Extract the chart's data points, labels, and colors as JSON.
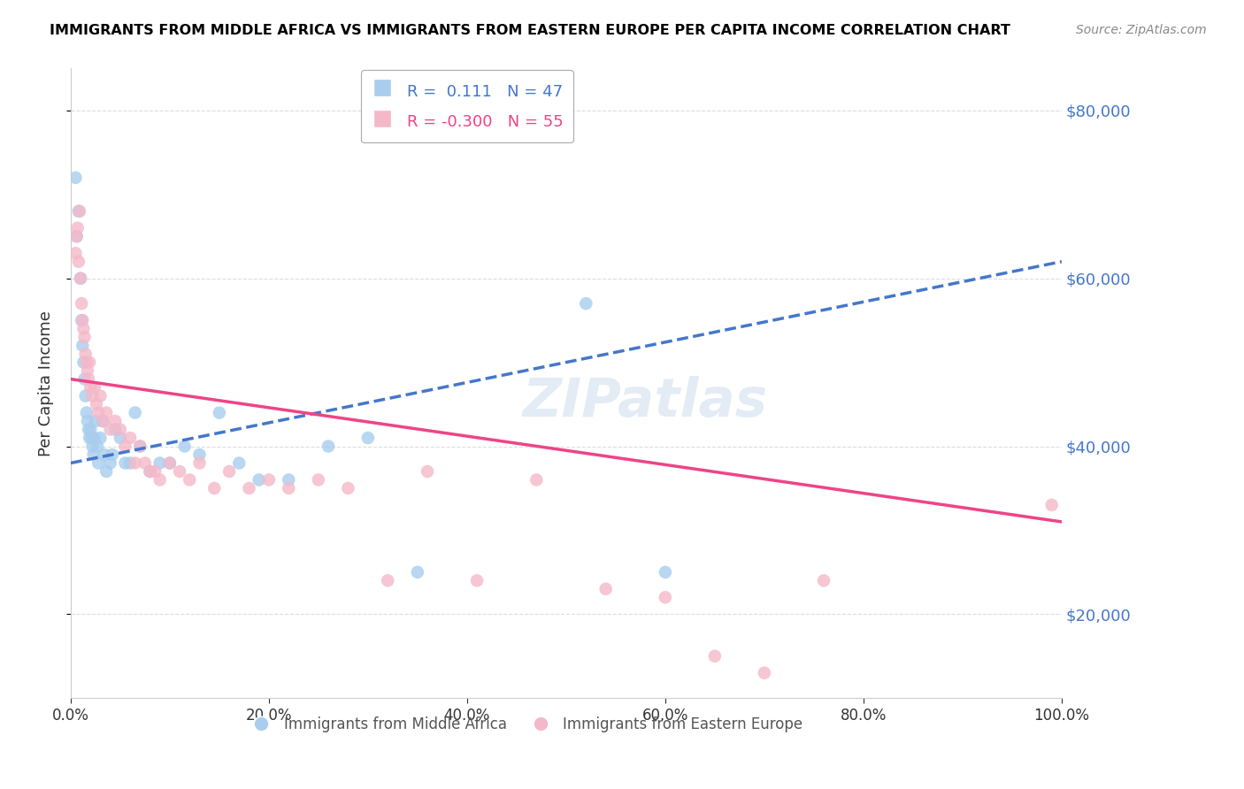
{
  "title": "IMMIGRANTS FROM MIDDLE AFRICA VS IMMIGRANTS FROM EASTERN EUROPE PER CAPITA INCOME CORRELATION CHART",
  "source": "Source: ZipAtlas.com",
  "ylabel": "Per Capita Income",
  "x_min": 0.0,
  "x_max": 1.0,
  "y_min": 10000,
  "y_max": 85000,
  "yticks": [
    20000,
    40000,
    60000,
    80000
  ],
  "ytick_labels": [
    "$20,000",
    "$40,000",
    "$60,000",
    "$80,000"
  ],
  "blue_R": 0.111,
  "blue_N": 47,
  "pink_R": -0.3,
  "pink_N": 55,
  "blue_color": "#A8CDED",
  "pink_color": "#F4B8C8",
  "blue_line_color": "#4477CC",
  "pink_line_color": "#EE4488",
  "legend_label_blue": "Immigrants from Middle Africa",
  "legend_label_pink": "Immigrants from Eastern Europe",
  "watermark": "ZIPatlas",
  "blue_trend_x0": 0.0,
  "blue_trend_x1": 1.0,
  "blue_trend_y0": 38000,
  "blue_trend_y1": 62000,
  "pink_trend_x0": 0.0,
  "pink_trend_x1": 1.0,
  "pink_trend_y0": 48000,
  "pink_trend_y1": 31000,
  "blue_scatter_x": [
    0.005,
    0.006,
    0.008,
    0.01,
    0.011,
    0.012,
    0.013,
    0.014,
    0.015,
    0.016,
    0.017,
    0.018,
    0.019,
    0.02,
    0.021,
    0.022,
    0.023,
    0.024,
    0.025,
    0.027,
    0.028,
    0.03,
    0.032,
    0.034,
    0.036,
    0.04,
    0.042,
    0.045,
    0.05,
    0.055,
    0.06,
    0.065,
    0.07,
    0.08,
    0.09,
    0.1,
    0.115,
    0.13,
    0.15,
    0.17,
    0.19,
    0.22,
    0.26,
    0.3,
    0.35,
    0.52,
    0.6
  ],
  "blue_scatter_y": [
    72000,
    65000,
    68000,
    60000,
    55000,
    52000,
    50000,
    48000,
    46000,
    44000,
    43000,
    42000,
    41000,
    42000,
    41000,
    40000,
    39000,
    41000,
    43000,
    40000,
    38000,
    41000,
    43000,
    39000,
    37000,
    38000,
    39000,
    42000,
    41000,
    38000,
    38000,
    44000,
    40000,
    37000,
    38000,
    38000,
    40000,
    39000,
    44000,
    38000,
    36000,
    36000,
    40000,
    41000,
    25000,
    57000,
    25000
  ],
  "pink_scatter_x": [
    0.005,
    0.006,
    0.007,
    0.008,
    0.009,
    0.01,
    0.011,
    0.012,
    0.013,
    0.014,
    0.015,
    0.016,
    0.017,
    0.018,
    0.019,
    0.02,
    0.022,
    0.024,
    0.026,
    0.028,
    0.03,
    0.033,
    0.036,
    0.04,
    0.045,
    0.05,
    0.055,
    0.06,
    0.065,
    0.07,
    0.075,
    0.08,
    0.085,
    0.09,
    0.1,
    0.11,
    0.12,
    0.13,
    0.145,
    0.16,
    0.18,
    0.2,
    0.22,
    0.25,
    0.28,
    0.32,
    0.36,
    0.41,
    0.47,
    0.54,
    0.6,
    0.65,
    0.7,
    0.76,
    0.99
  ],
  "pink_scatter_y": [
    63000,
    65000,
    66000,
    62000,
    68000,
    60000,
    57000,
    55000,
    54000,
    53000,
    51000,
    50000,
    49000,
    48000,
    50000,
    47000,
    46000,
    47000,
    45000,
    44000,
    46000,
    43000,
    44000,
    42000,
    43000,
    42000,
    40000,
    41000,
    38000,
    40000,
    38000,
    37000,
    37000,
    36000,
    38000,
    37000,
    36000,
    38000,
    35000,
    37000,
    35000,
    36000,
    35000,
    36000,
    35000,
    24000,
    37000,
    24000,
    36000,
    23000,
    22000,
    15000,
    13000,
    24000,
    33000
  ]
}
